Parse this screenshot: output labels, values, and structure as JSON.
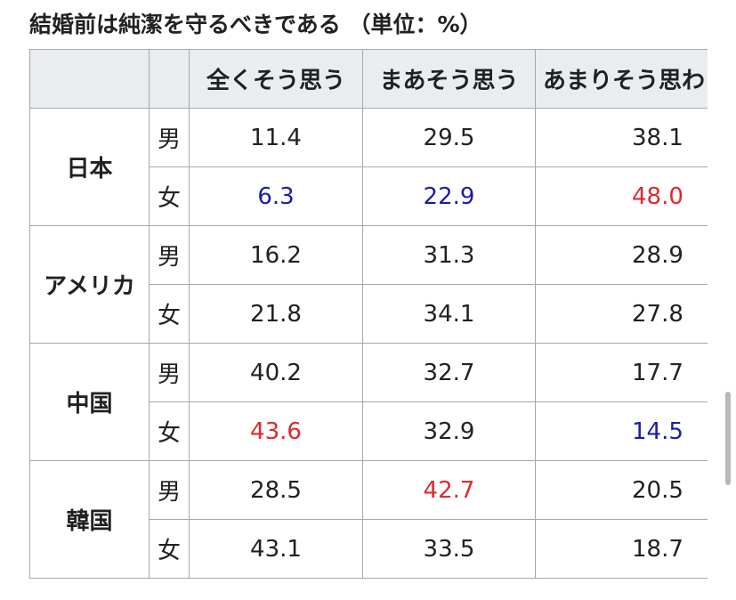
{
  "title": "結婚前は純潔を守るべきである （単位：%）",
  "table": {
    "headers": [
      "全くそう思う",
      "まあそう思う",
      "あまりそう思わ"
    ],
    "groups": [
      {
        "country": "日本",
        "rows": [
          {
            "sex": "男",
            "values": [
              "11.4",
              "29.5",
              "38.1"
            ]
          },
          {
            "sex": "女",
            "values": [
              {
                "text": "6.3",
                "color": "#1c1ca8"
              },
              {
                "text": "22.9",
                "color": "#1c1ca8"
              },
              {
                "text": "48.0",
                "color": "#e0282e"
              }
            ]
          }
        ]
      },
      {
        "country": "アメリカ",
        "rows": [
          {
            "sex": "男",
            "values": [
              "16.2",
              "31.3",
              "28.9"
            ]
          },
          {
            "sex": "女",
            "values": [
              "21.8",
              "34.1",
              "27.8"
            ]
          }
        ]
      },
      {
        "country": "中国",
        "rows": [
          {
            "sex": "男",
            "values": [
              "40.2",
              "32.7",
              "17.7"
            ]
          },
          {
            "sex": "女",
            "values": [
              {
                "text": "43.6",
                "color": "#e0282e"
              },
              "32.9",
              {
                "text": "14.5",
                "color": "#1c1ca8"
              }
            ]
          }
        ]
      },
      {
        "country": "韓国",
        "rows": [
          {
            "sex": "男",
            "values": [
              "28.5",
              {
                "text": "42.7",
                "color": "#e0282e"
              },
              "20.5"
            ]
          },
          {
            "sex": "女",
            "values": [
              "43.1",
              "33.5",
              "18.7"
            ]
          }
        ]
      }
    ]
  }
}
